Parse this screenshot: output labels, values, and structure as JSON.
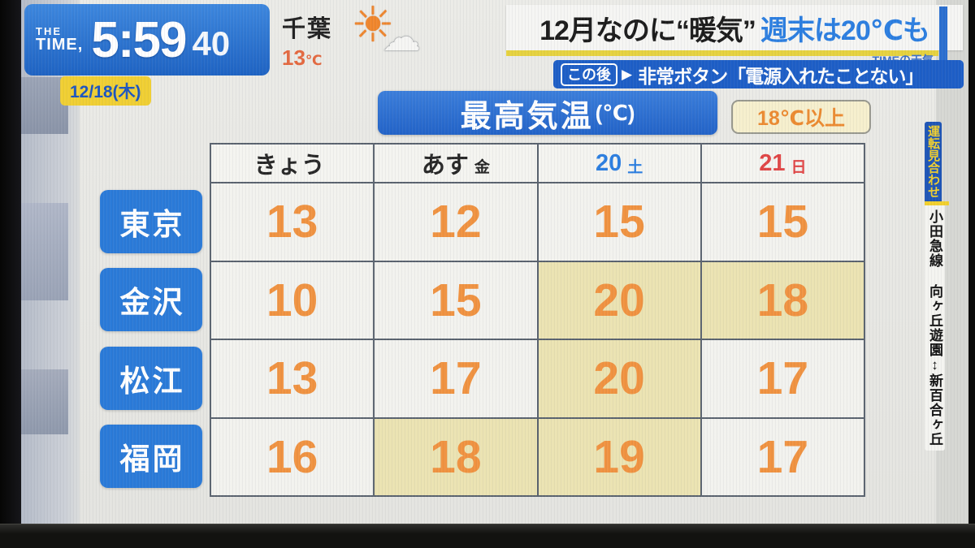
{
  "clock": {
    "brand_top": "THE",
    "brand_bottom": "TIME,",
    "time": "5:59",
    "seconds": "40"
  },
  "date_badge": {
    "text": "12/18(木)"
  },
  "local_weather": {
    "city": "千葉",
    "temp": "13",
    "unit": "℃",
    "icon": "sun-behind-cloud",
    "sun_glyph": "☀",
    "cloud_glyph": "☁"
  },
  "headline": {
    "part1": "12月なのに“暖気”",
    "part2": "週末は20℃も",
    "watermark": "TIMEの天気"
  },
  "coming_up": {
    "badge": "この後",
    "arrow": "▶",
    "text": "非常ボタン「電源入れたことない」"
  },
  "board": {
    "title": "最高気温",
    "title_unit": "(℃)",
    "legend": "18℃以上",
    "columns": [
      {
        "label": "きょう",
        "suffix": "",
        "color": "black"
      },
      {
        "label": "あす",
        "suffix": "金",
        "color": "black"
      },
      {
        "label": "20",
        "suffix": "土",
        "color": "blue"
      },
      {
        "label": "21",
        "suffix": "日",
        "color": "red"
      }
    ],
    "rows": [
      {
        "city": "東京",
        "cells": [
          {
            "v": "13",
            "hl": false
          },
          {
            "v": "12",
            "hl": false
          },
          {
            "v": "15",
            "hl": false
          },
          {
            "v": "15",
            "hl": false
          }
        ]
      },
      {
        "city": "金沢",
        "cells": [
          {
            "v": "10",
            "hl": false
          },
          {
            "v": "15",
            "hl": false
          },
          {
            "v": "20",
            "hl": true
          },
          {
            "v": "18",
            "hl": true
          }
        ]
      },
      {
        "city": "松江",
        "cells": [
          {
            "v": "13",
            "hl": false
          },
          {
            "v": "17",
            "hl": false
          },
          {
            "v": "20",
            "hl": true
          },
          {
            "v": "17",
            "hl": false
          }
        ]
      },
      {
        "city": "福岡",
        "cells": [
          {
            "v": "16",
            "hl": false
          },
          {
            "v": "18",
            "hl": true
          },
          {
            "v": "19",
            "hl": true
          },
          {
            "v": "17",
            "hl": false
          }
        ]
      }
    ]
  },
  "side_banner": {
    "status": "運転見合わせ",
    "detail": "小田急線 向ヶ丘遊園↕新百合ヶ丘"
  },
  "colors": {
    "accent_blue": "#2b74d6",
    "temp_orange": "#f09240",
    "highlight_yellow": "#ebe3b2",
    "badge_yellow": "#f0cf33",
    "headline_blue": "#2b7ee0",
    "saturday_blue": "#2b7ee0",
    "sunday_red": "#e04545",
    "notice_blue": "#1e55b6",
    "notice_yellow": "#f2d02e"
  },
  "chart_data": {
    "type": "table",
    "title": "最高気温(℃)",
    "legend_note": "18℃以上の値はセルが黄色で強調",
    "highlight_threshold": 18,
    "columns": [
      "きょう",
      "あす(金)",
      "20(土)",
      "21(日)"
    ],
    "rows": [
      "東京",
      "金沢",
      "松江",
      "福岡"
    ],
    "values": [
      [
        13,
        12,
        15,
        15
      ],
      [
        10,
        15,
        20,
        18
      ],
      [
        13,
        17,
        20,
        17
      ],
      [
        16,
        18,
        19,
        17
      ]
    ]
  }
}
